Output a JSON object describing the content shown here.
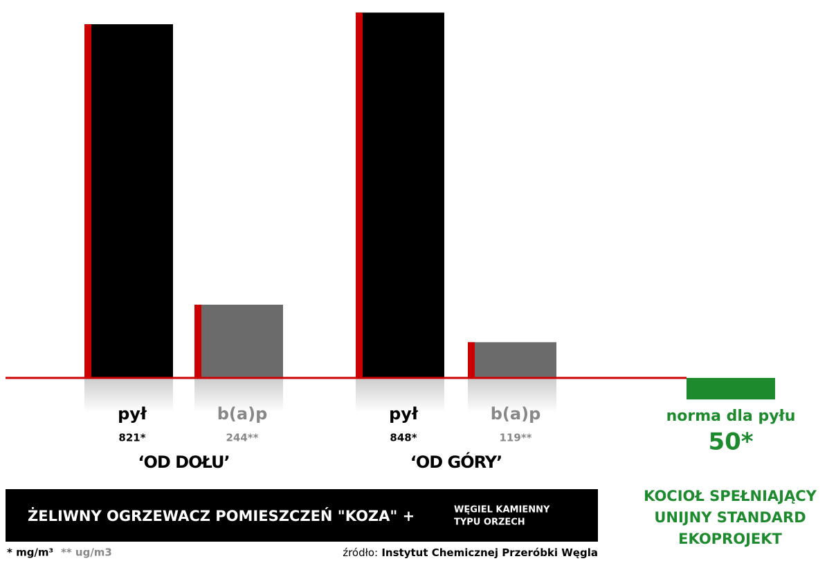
{
  "chart_data": {
    "type": "bar",
    "categories": [
      "‘OD DOŁU’",
      "‘OD GÓRY’"
    ],
    "series": [
      {
        "name": "pył",
        "color": "#000000",
        "values": [
          821,
          848
        ],
        "value_labels": [
          "821*",
          "848*"
        ]
      },
      {
        "name": "b(a)p",
        "color": "#6b6b6b",
        "axis": "y2",
        "values": [
          244,
          119
        ],
        "value_labels": [
          "244**",
          "119**"
        ]
      }
    ],
    "ylim": [
      0,
      850
    ],
    "y2lim": [
      0,
      1220
    ],
    "accent_color": "#cc0000",
    "norm": {
      "name": "norma dla pyłu",
      "value": 50,
      "value_label": "50*",
      "color": "#1e8a2e"
    },
    "caption": [
      "KOCIOŁ SPEŁNIAJĄCY",
      "UNIJNY STANDARD",
      "EKOPROJEKT"
    ],
    "banner": {
      "main": "ŻELIWNY OGRZEWACZ POMIESZCZEŃ \"KOZA\" +",
      "side": [
        "WĘGIEL KAMIENNY",
        "TYPU ORZECH"
      ]
    },
    "footnotes": [
      "* mg/m³",
      "** ug/m3"
    ],
    "source": {
      "prefix": "źródło:",
      "name": "Instytut Chemicznej Przeróbki Węgla"
    }
  }
}
